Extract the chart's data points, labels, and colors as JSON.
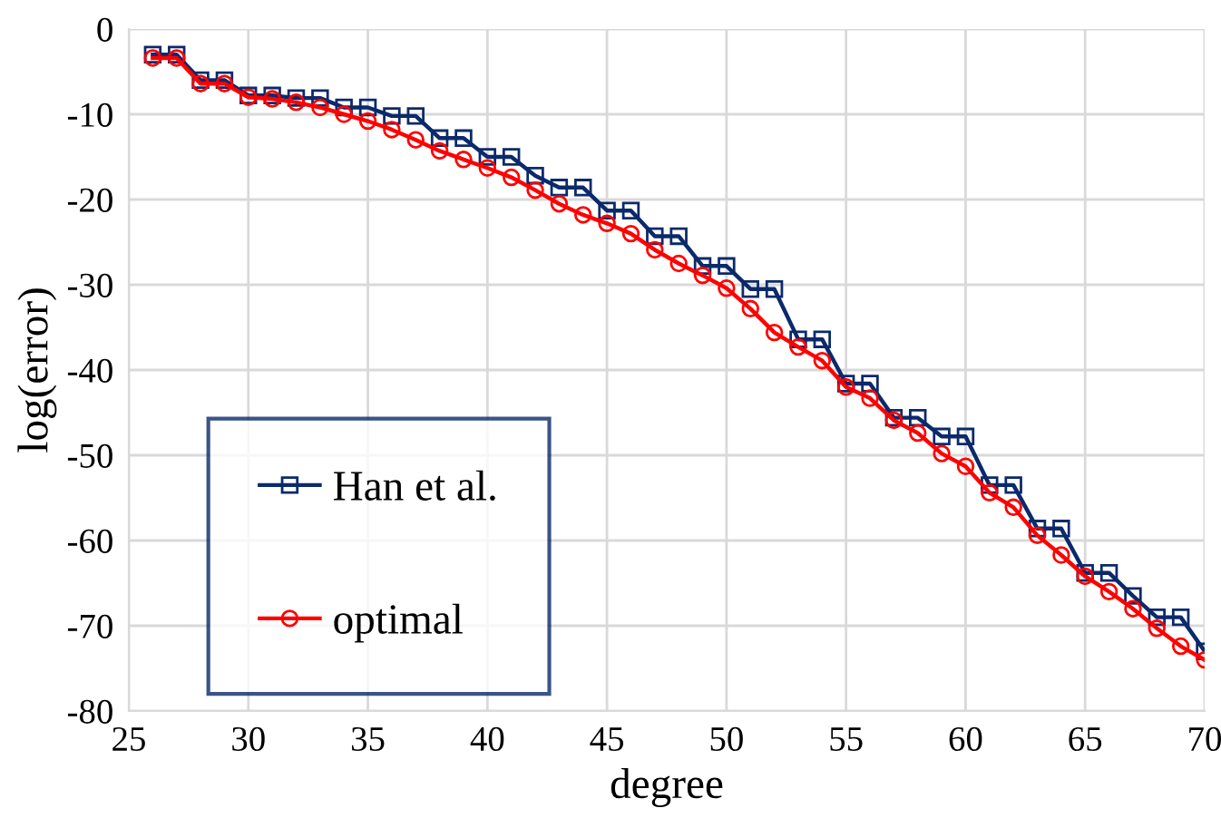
{
  "chart_data": {
    "type": "line",
    "xlabel": "degree",
    "ylabel": "log(error)",
    "x": [
      26,
      27,
      28,
      29,
      30,
      31,
      32,
      33,
      34,
      35,
      36,
      37,
      38,
      39,
      40,
      41,
      42,
      43,
      44,
      45,
      46,
      47,
      48,
      49,
      50,
      51,
      52,
      53,
      54,
      55,
      56,
      57,
      58,
      59,
      60,
      61,
      62,
      63,
      64,
      65,
      66,
      67,
      68,
      69,
      70
    ],
    "series": [
      {
        "name": "Han et al.",
        "color": "#0b2a6b",
        "marker": "square",
        "values": [
          -3,
          -3,
          -6,
          -6,
          -7.8,
          -7.8,
          -8.1,
          -8.1,
          -9.2,
          -9.2,
          -10.2,
          -10.2,
          -12.8,
          -12.8,
          -15,
          -15,
          -17.2,
          -18.6,
          -18.6,
          -21.3,
          -21.3,
          -24.3,
          -24.3,
          -27.8,
          -27.8,
          -30.5,
          -30.5,
          -36.4,
          -36.4,
          -41.6,
          -41.6,
          -45.6,
          -45.6,
          -47.8,
          -47.8,
          -53.5,
          -53.5,
          -58.6,
          -58.6,
          -63.8,
          -63.8,
          -66.5,
          -69,
          -69,
          -73
        ]
      },
      {
        "name": "optimal",
        "color": "#ff0000",
        "marker": "circle",
        "values": [
          -3.4,
          -3.4,
          -6.4,
          -6.4,
          -8,
          -8.2,
          -8.6,
          -9.2,
          -10,
          -10.8,
          -11.8,
          -13,
          -14.3,
          -15.3,
          -16.3,
          -17.4,
          -18.9,
          -20.5,
          -21.8,
          -22.8,
          -24,
          -25.9,
          -27.5,
          -28.9,
          -30.4,
          -32.8,
          -35.6,
          -37.3,
          -38.9,
          -42,
          -43.3,
          -45.9,
          -47.4,
          -49.8,
          -51.3,
          -54.4,
          -56.1,
          -59.4,
          -61.7,
          -64.2,
          -66,
          -68,
          -70.3,
          -72.4,
          -74
        ]
      }
    ],
    "xlim": [
      25,
      70
    ],
    "xticks": [
      25,
      30,
      35,
      40,
      45,
      50,
      55,
      60,
      65,
      70
    ],
    "ylim": [
      -80,
      0
    ],
    "yticks": [
      -80,
      -70,
      -60,
      -50,
      -40,
      -30,
      -20,
      -10,
      0
    ],
    "grid": true,
    "legend": "left",
    "line_style": "solid"
  }
}
